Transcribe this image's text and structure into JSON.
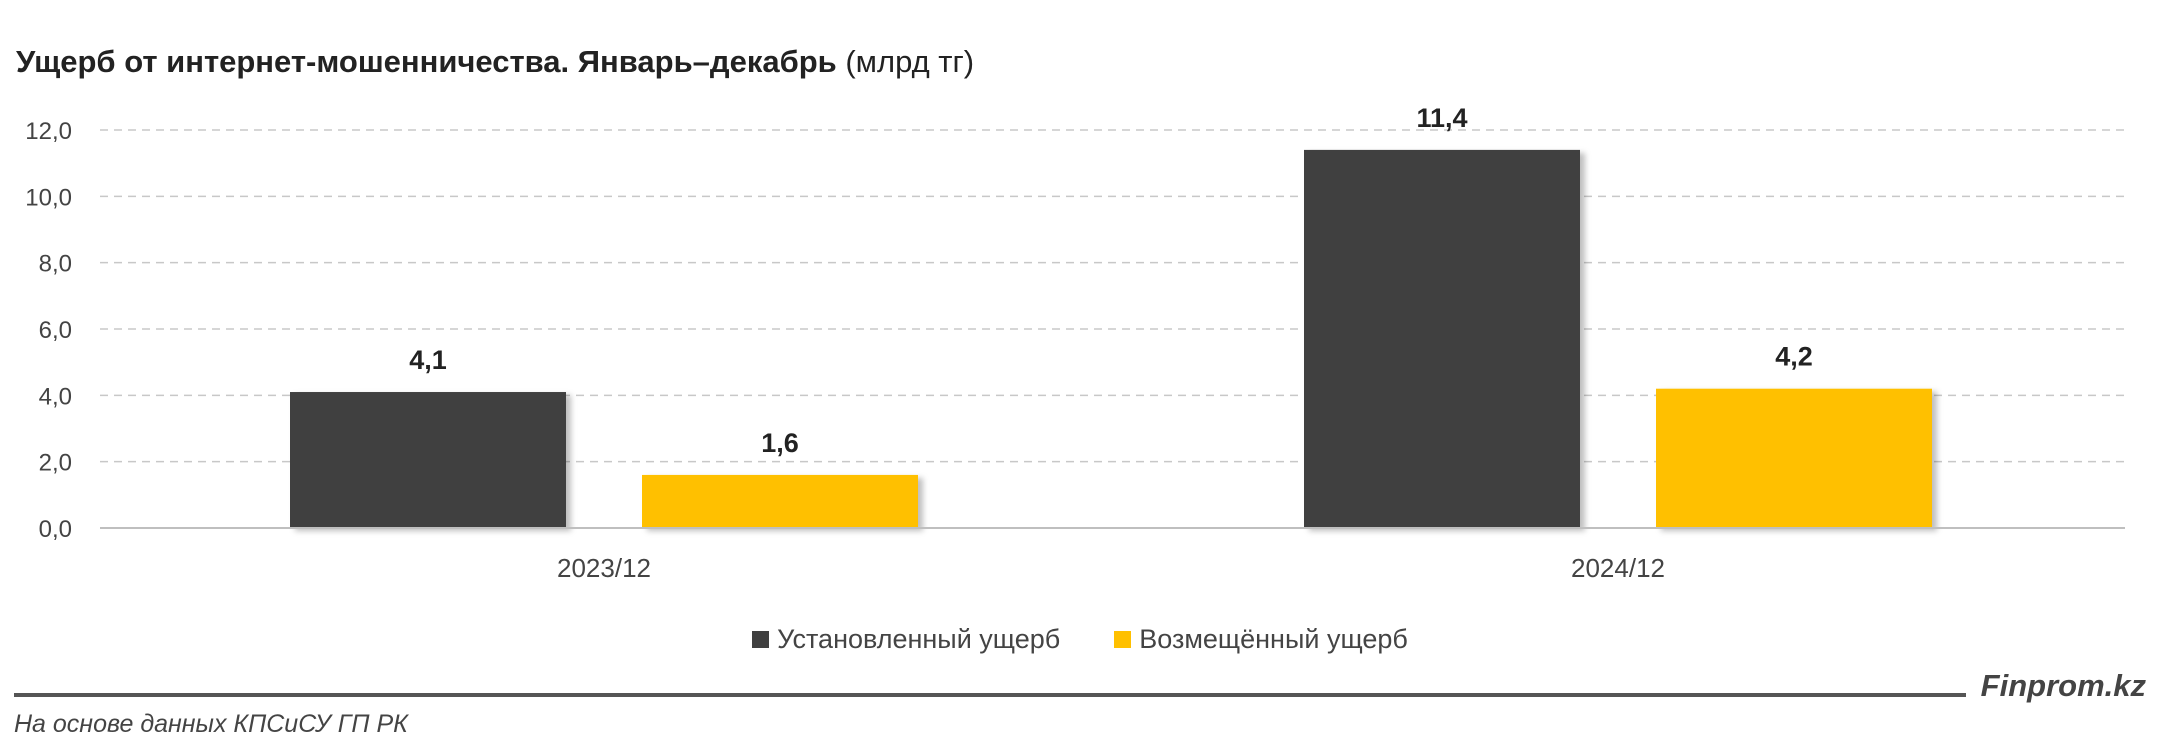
{
  "title": {
    "main": "Ущерб от интернет-мошенничества. Январь–декабрь",
    "unit": "(млрд тг)"
  },
  "chart_data": {
    "type": "bar",
    "categories": [
      "2023/12",
      "2024/12"
    ],
    "series": [
      {
        "name": "Установленный ущерб",
        "values": [
          4.1,
          11.4
        ],
        "labels": [
          "4,1",
          "11,4"
        ],
        "color": "#404040"
      },
      {
        "name": "Возмещённый ущерб",
        "values": [
          1.6,
          4.2
        ],
        "labels": [
          "1,6",
          "4,2"
        ],
        "color": "#FFC000"
      }
    ],
    "ylim": [
      0,
      12
    ],
    "yticks": [
      0,
      2,
      4,
      6,
      8,
      10,
      12
    ],
    "ytick_labels": [
      "0,0",
      "2,0",
      "4,0",
      "6,0",
      "8,0",
      "10,0",
      "12,0"
    ],
    "grid": true,
    "legend": "bottom"
  },
  "footer": {
    "brand": "Finprom.kz",
    "source": "На основе данных КПСиСУ ГП РК"
  }
}
